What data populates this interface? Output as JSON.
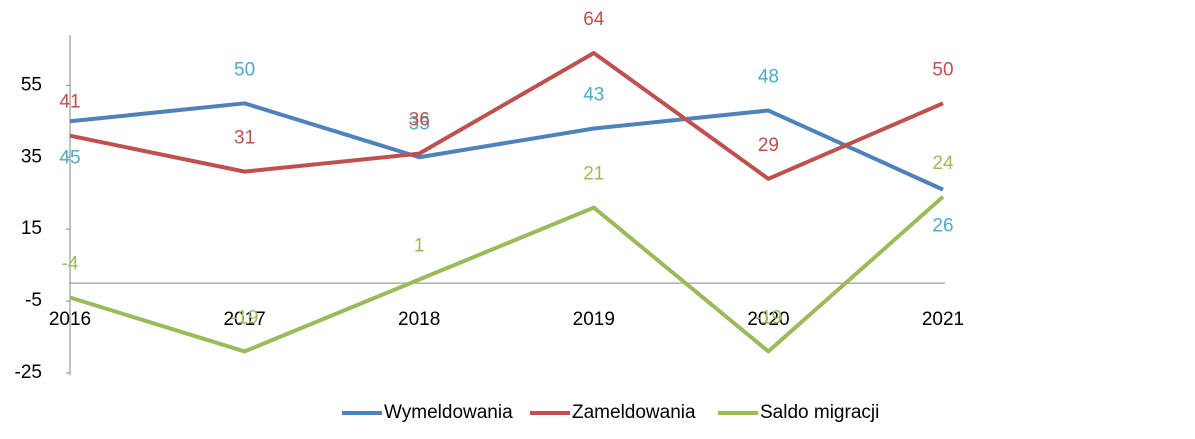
{
  "chart_data": {
    "type": "line",
    "categories": [
      "2016",
      "2017",
      "2018",
      "2019",
      "2020",
      "2021"
    ],
    "series": [
      {
        "name": "Wymeldowania",
        "color": "#4f81bd",
        "label_color": "#4bacc6",
        "values": [
          45,
          50,
          35,
          43,
          48,
          26
        ]
      },
      {
        "name": "Zameldowania",
        "color": "#c0504d",
        "label_color": "#c0504d",
        "values": [
          41,
          31,
          36,
          64,
          29,
          50
        ]
      },
      {
        "name": "Saldo migracji",
        "color": "#9bbb59",
        "label_color": "#9bbb59",
        "values": [
          -4,
          -19,
          1,
          21,
          -19,
          24
        ]
      }
    ],
    "ylim": [
      -25,
      69
    ],
    "yticks": [
      -25,
      -5,
      15,
      35,
      55
    ],
    "legend": "bottom"
  }
}
